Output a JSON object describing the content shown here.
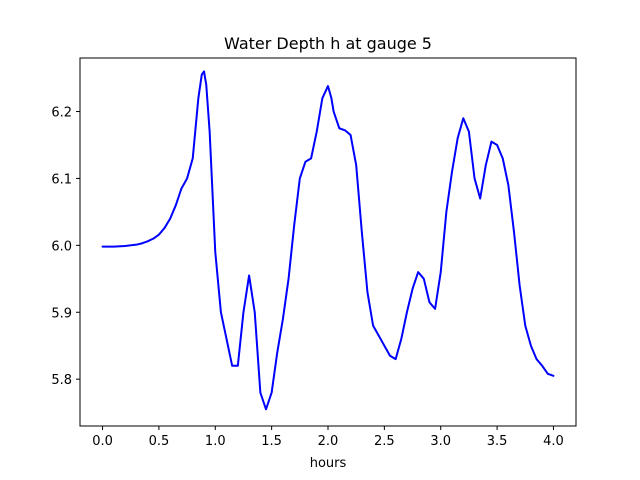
{
  "chart_data": {
    "type": "line",
    "title": "Water Depth h at gauge 5",
    "xlabel": "hours",
    "ylabel": "",
    "xlim": [
      -0.2,
      4.2
    ],
    "ylim": [
      5.73,
      6.28
    ],
    "xticks": [
      0.0,
      0.5,
      1.0,
      1.5,
      2.0,
      2.5,
      3.0,
      3.5,
      4.0
    ],
    "xtick_labels": [
      "0.0",
      "0.5",
      "1.0",
      "1.5",
      "2.0",
      "2.5",
      "3.0",
      "3.5",
      "4.0"
    ],
    "yticks": [
      5.8,
      5.9,
      6.0,
      6.1,
      6.2
    ],
    "ytick_labels": [
      "5.8",
      "5.9",
      "6.0",
      "6.1",
      "6.2"
    ],
    "grid": false,
    "series": [
      {
        "color": "#0000ff",
        "x": [
          0.0,
          0.1,
          0.2,
          0.3,
          0.35,
          0.4,
          0.45,
          0.5,
          0.55,
          0.6,
          0.65,
          0.7,
          0.75,
          0.8,
          0.85,
          0.88,
          0.9,
          0.92,
          0.95,
          1.0,
          1.05,
          1.1,
          1.15,
          1.2,
          1.25,
          1.3,
          1.35,
          1.4,
          1.45,
          1.5,
          1.55,
          1.6,
          1.65,
          1.7,
          1.75,
          1.8,
          1.85,
          1.9,
          1.95,
          2.0,
          2.03,
          2.05,
          2.1,
          2.15,
          2.2,
          2.25,
          2.3,
          2.35,
          2.4,
          2.45,
          2.5,
          2.55,
          2.6,
          2.65,
          2.7,
          2.75,
          2.8,
          2.85,
          2.9,
          2.95,
          3.0,
          3.05,
          3.1,
          3.15,
          3.2,
          3.25,
          3.3,
          3.35,
          3.4,
          3.45,
          3.5,
          3.55,
          3.6,
          3.65,
          3.7,
          3.75,
          3.8,
          3.85,
          3.9,
          3.95,
          4.0
        ],
        "y": [
          5.998,
          5.998,
          5.999,
          6.001,
          6.003,
          6.006,
          6.01,
          6.016,
          6.026,
          6.04,
          6.06,
          6.085,
          6.1,
          6.13,
          6.22,
          6.255,
          6.26,
          6.24,
          6.17,
          5.99,
          5.9,
          5.86,
          5.82,
          5.82,
          5.9,
          5.955,
          5.9,
          5.78,
          5.755,
          5.78,
          5.84,
          5.89,
          5.95,
          6.03,
          6.1,
          6.125,
          6.13,
          6.17,
          6.22,
          6.238,
          6.22,
          6.2,
          6.175,
          6.172,
          6.165,
          6.12,
          6.02,
          5.93,
          5.88,
          5.865,
          5.85,
          5.835,
          5.83,
          5.86,
          5.9,
          5.935,
          5.96,
          5.95,
          5.915,
          5.905,
          5.96,
          6.05,
          6.11,
          6.16,
          6.19,
          6.17,
          6.1,
          6.07,
          6.12,
          6.155,
          6.15,
          6.13,
          6.09,
          6.02,
          5.94,
          5.88,
          5.85,
          5.83,
          5.82,
          5.808,
          5.805
        ]
      }
    ]
  }
}
